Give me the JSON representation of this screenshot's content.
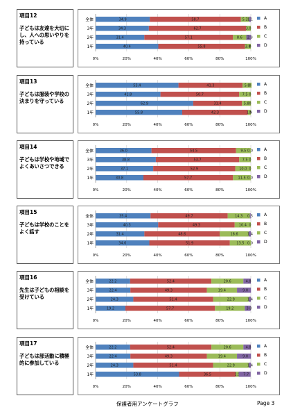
{
  "footer": {
    "title": "保護者用アンケートグラフ",
    "page": "Page 3"
  },
  "legend": [
    "A",
    "B",
    "C",
    "D"
  ],
  "colors": {
    "A": "#4f81bd",
    "B": "#c0504d",
    "C": "#9bbb59",
    "D": "#8064a2"
  },
  "sections": [
    {
      "num": "項目12",
      "text": "子どもは友達を大切にし、人への思いやりを持っている"
    },
    {
      "num": "項目13",
      "text": "子どもは服装や学校の決まりを守っている"
    },
    {
      "num": "項目14",
      "text": "子どもは学校や地域でよくあいさつできる"
    },
    {
      "num": "項目15",
      "text": "子どもは学校のことをよく話す"
    },
    {
      "num": "項目16",
      "text": "先生は子どもの相談を受けている"
    },
    {
      "num": "項目17",
      "text": "子どもは部活動に積極的に参加している"
    }
  ],
  "chart_data": [
    {
      "type": "bar",
      "orientation": "horizontal",
      "stacked": true,
      "categories": [
        "全体",
        "3年",
        "2年",
        "1年"
      ],
      "xlim": [
        0,
        100
      ],
      "xticks": [
        "0%",
        "20%",
        "40%",
        "60%",
        "80%",
        "100%"
      ],
      "series": [
        {
          "name": "A",
          "values": [
            34.9,
            34.3,
            31.4,
            40.4
          ]
        },
        {
          "name": "B",
          "values": [
            58.7,
            62.7,
            57.1,
            55.8
          ]
        },
        {
          "name": "C",
          "values": [
            5.3,
            3.0,
            8.6,
            3.8
          ]
        },
        {
          "name": "D",
          "values": [
            1.1,
            0.0,
            2.9,
            0.0
          ]
        }
      ],
      "labels": [
        [
          "34.9",
          "58.7",
          "5.3",
          "1.1"
        ],
        [
          "34.3",
          "62.7",
          "3.0",
          ""
        ],
        [
          "31.4",
          "57.1",
          "8.6",
          "2.9"
        ],
        [
          "40.4",
          "55.8",
          "3.8",
          "0"
        ]
      ]
    },
    {
      "type": "bar",
      "orientation": "horizontal",
      "stacked": true,
      "categories": [
        "全体",
        "3年",
        "2年",
        "1年"
      ],
      "xlim": [
        0,
        100
      ],
      "xticks": [
        "0%",
        "20%",
        "40%",
        "60%",
        "80%",
        "100%"
      ],
      "series": [
        {
          "name": "A",
          "values": [
            53.4,
            41.8,
            62.9,
            55.8
          ]
        },
        {
          "name": "B",
          "values": [
            41.3,
            50.7,
            31.4,
            42.3
          ]
        },
        {
          "name": "C",
          "values": [
            5.8,
            7.5,
            5.8,
            1.9
          ]
        },
        {
          "name": "D",
          "values": [
            0.0,
            0.0,
            0.0,
            0.0
          ]
        }
      ],
      "labels": [
        [
          "53.4",
          "41.3",
          "5.8",
          "0"
        ],
        [
          "41.8",
          "50.7",
          "7.5",
          "0"
        ],
        [
          "62.9",
          "31.4",
          "5.8",
          "0"
        ],
        [
          "55.8",
          "42.3",
          "1.9",
          "0"
        ]
      ]
    },
    {
      "type": "bar",
      "orientation": "horizontal",
      "stacked": true,
      "categories": [
        "全体",
        "3年",
        "2年",
        "1年"
      ],
      "xlim": [
        0,
        100
      ],
      "xticks": [
        "0%",
        "20%",
        "40%",
        "60%",
        "80%",
        "100%"
      ],
      "series": [
        {
          "name": "A",
          "values": [
            36.0,
            38.8,
            37.1,
            30.8
          ]
        },
        {
          "name": "B",
          "values": [
            54.5,
            53.7,
            52.9,
            57.7
          ]
        },
        {
          "name": "C",
          "values": [
            9.5,
            7.5,
            10.0,
            11.5
          ]
        },
        {
          "name": "D",
          "values": [
            0.0,
            0.0,
            0.0,
            0.0
          ]
        }
      ],
      "labels": [
        [
          "36.0",
          "54.5",
          "9.5",
          "0.0"
        ],
        [
          "38.8",
          "53.7",
          "7.5",
          "0"
        ],
        [
          "37.1",
          "52.9",
          "10.0",
          "0"
        ],
        [
          "30.8",
          "57.7",
          "11.5",
          "0.0"
        ]
      ]
    },
    {
      "type": "bar",
      "orientation": "horizontal",
      "stacked": true,
      "categories": [
        "全体",
        "3年",
        "2年",
        "1年"
      ],
      "xlim": [
        0,
        100
      ],
      "xticks": [
        "0%",
        "20%",
        "40%",
        "60%",
        "80%",
        "100%"
      ],
      "series": [
        {
          "name": "A",
          "values": [
            35.4,
            40.3,
            31.4,
            34.6
          ]
        },
        {
          "name": "B",
          "values": [
            49.7,
            49.3,
            48.6,
            51.9
          ]
        },
        {
          "name": "C",
          "values": [
            14.3,
            10.4,
            18.6,
            13.5
          ]
        },
        {
          "name": "D",
          "values": [
            0.5,
            0.0,
            1.4,
            0.0
          ]
        }
      ],
      "labels": [
        [
          "35.4",
          "49.7",
          "14.3",
          "0.5"
        ],
        [
          "40.3",
          "49.3",
          "10.4",
          "0"
        ],
        [
          "31.4",
          "48.6",
          "18.6",
          "1.4"
        ],
        [
          "34.6",
          "51.9",
          "13.5",
          "0.0"
        ]
      ]
    },
    {
      "type": "bar",
      "orientation": "horizontal",
      "stacked": true,
      "categories": [
        "全体",
        "3年",
        "2年",
        "1年"
      ],
      "xlim": [
        0,
        100
      ],
      "xticks": [
        "0%",
        "20%",
        "40%",
        "60%",
        "80%",
        "100%"
      ],
      "series": [
        {
          "name": "A",
          "values": [
            22.2,
            22.4,
            24.3,
            19.2
          ]
        },
        {
          "name": "B",
          "values": [
            52.4,
            49.3,
            51.4,
            57.7
          ]
        },
        {
          "name": "C",
          "values": [
            20.6,
            19.4,
            22.9,
            19.2
          ]
        },
        {
          "name": "D",
          "values": [
            4.8,
            9.0,
            1.4,
            3.8
          ]
        }
      ],
      "labels": [
        [
          "22.2",
          "52.4",
          "20.6",
          "4.8"
        ],
        [
          "22.4",
          "49.3",
          "19.4",
          "9.0"
        ],
        [
          "24.3",
          "51.4",
          "22.9",
          "1.4"
        ],
        [
          "19.2",
          "57.7",
          "19.2",
          "3.8"
        ]
      ]
    },
    {
      "type": "bar",
      "orientation": "horizontal",
      "stacked": true,
      "categories": [
        "全体",
        "3年",
        "2年",
        "1年"
      ],
      "xlim": [
        0,
        100
      ],
      "xticks": [
        "0%",
        "20%",
        "40%",
        "60%",
        "80%",
        "100%"
      ],
      "series": [
        {
          "name": "A",
          "values": [
            22.2,
            22.4,
            24.3,
            53.8
          ]
        },
        {
          "name": "B",
          "values": [
            52.4,
            49.3,
            51.4,
            36.5
          ]
        },
        {
          "name": "C",
          "values": [
            20.6,
            19.4,
            22.9,
            1.9
          ]
        },
        {
          "name": "D",
          "values": [
            4.8,
            9.0,
            1.4,
            7.7
          ]
        }
      ],
      "labels": [
        [
          "22.2",
          "52.4",
          "20.6",
          "4.8"
        ],
        [
          "22.4",
          "49.3",
          "19.4",
          "9.0"
        ],
        [
          "24.3",
          "51.4",
          "22.9",
          "1.4"
        ],
        [
          "53.8",
          "36.5",
          "1.9",
          "7.7"
        ]
      ]
    }
  ]
}
